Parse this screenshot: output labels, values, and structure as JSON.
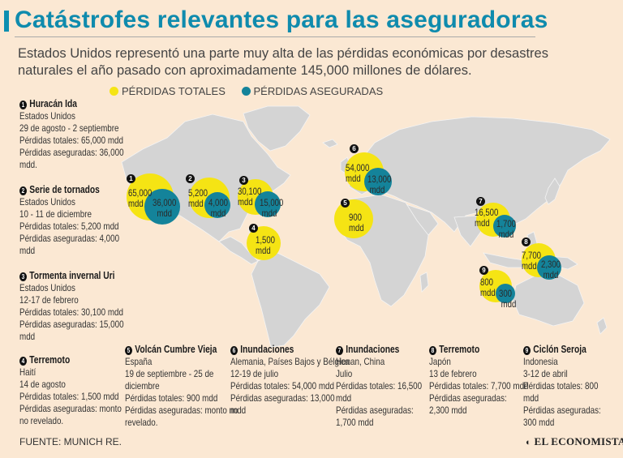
{
  "title": "Catástrofes relevantes para las aseguradoras",
  "subtitle": "Estados Unidos representó una parte muy alta de las pérdidas económicas por desastres naturales el año pasado con aproximadamente 145,000 millones de dólares.",
  "legend": {
    "total": "PÉRDIDAS TOTALES",
    "insured": "PÉRDIDAS ASEGURADAS"
  },
  "colors": {
    "total": "#f5e414",
    "insured": "#14839a",
    "land": "#d3d3d3",
    "accent": "#0f8bad"
  },
  "map_labels": [
    {
      "num": "1",
      "total": "65,000",
      "insured": "36,000",
      "unit": "mdd"
    },
    {
      "num": "2",
      "total": "5,200",
      "insured": "4,000",
      "unit": "mdd"
    },
    {
      "num": "3",
      "total": "30,100",
      "insured": "15,000",
      "unit": "mdd"
    },
    {
      "num": "4",
      "total": "1,500",
      "unit": "mdd"
    },
    {
      "num": "5",
      "total": "900",
      "unit": "mdd"
    },
    {
      "num": "6",
      "total": "54,000",
      "insured": "13,000",
      "unit": "mdd"
    },
    {
      "num": "7",
      "total": "16,500",
      "insured": "1,700",
      "unit": "mdd"
    },
    {
      "num": "8",
      "total": "7,700",
      "insured": "2,300",
      "unit": "mdd"
    },
    {
      "num": "9",
      "total": "800",
      "insured": "300",
      "unit": "mdd"
    }
  ],
  "events": [
    {
      "num": "1",
      "name": "Huracán Ida",
      "lines": [
        "Estados Unidos",
        "29 de agosto - 2 septiembre",
        "Pérdidas totales: 65,000 mdd",
        "Pérdidas aseguradas: 36,000",
        "mdd."
      ]
    },
    {
      "num": "2",
      "name": "Serie de tornados",
      "lines": [
        "Estados Unidos",
        "10 - 11 de diciembre",
        "Pérdidas totales: 5,200 mdd",
        "Pérdidas aseguradas: 4,000",
        "mdd"
      ]
    },
    {
      "num": "3",
      "name": "Tormenta invernal Uri",
      "lines": [
        "Estados Unidos",
        "12-17 de febrero",
        "Pérdidas totales: 30,100 mdd",
        "Pérdidas aseguradas: 15,000",
        "mdd"
      ]
    },
    {
      "num": "4",
      "name": "Terremoto",
      "lines": [
        "Haití",
        "14 de agosto",
        "Pérdidas totales: 1,500 mdd",
        "Pérdidas aseguradas: monto",
        "no revelado."
      ]
    },
    {
      "num": "5",
      "name": "Volcán Cumbre Vieja",
      "lines": [
        "España",
        "19 de septiembre - 25 de",
        "diciembre",
        "Pérdidas totales: 900 mdd",
        "Pérdidas aseguradas: monto no",
        "revelado."
      ]
    },
    {
      "num": "6",
      "name": "Inundaciones",
      "lines": [
        "Alemania, Países Bajos y Bélgica",
        "12-19 de julio",
        "Pérdidas totales: 54,000 mdd",
        "Pérdidas aseguradas: 13,000",
        "mdd"
      ]
    },
    {
      "num": "7",
      "name": "Inundaciones",
      "lines": [
        "Henan, China",
        "Julio",
        "Pérdidas totales: 16,500",
        "mdd",
        "Pérdidas aseguradas:",
        "1,700 mdd"
      ]
    },
    {
      "num": "8",
      "name": "Terremoto",
      "lines": [
        "Japón",
        "13 de febrero",
        "Pérdidas totales: 7,700 mdd",
        "Pérdidas aseguradas:",
        "2,300 mdd"
      ]
    },
    {
      "num": "9",
      "name": "Ciclón Seroja",
      "lines": [
        "Indonesia",
        "3-12 de abril",
        "Pérdidas totales: 800 mdd",
        "Pérdidas aseguradas:",
        "300 mdd"
      ]
    }
  ],
  "source": "FUENTE: MUNICH RE.",
  "brand": "EL ECONOMISTA"
}
